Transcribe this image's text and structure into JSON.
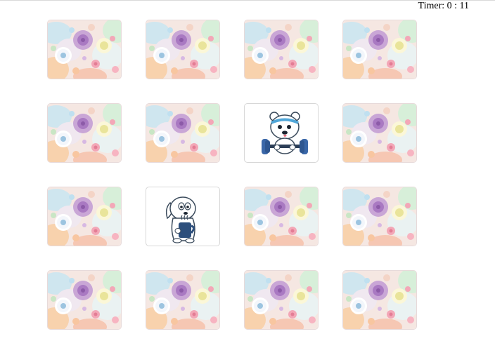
{
  "timer": {
    "label": "Timer:",
    "minutes": "0",
    "separator": ":",
    "seconds": "11"
  },
  "board": {
    "rows": 4,
    "columns": 4,
    "cards": [
      {
        "state": "face-down",
        "back": "floral-pattern"
      },
      {
        "state": "face-down",
        "back": "floral-pattern"
      },
      {
        "state": "face-down",
        "back": "floral-pattern"
      },
      {
        "state": "face-down",
        "back": "floral-pattern"
      },
      {
        "state": "face-down",
        "back": "floral-pattern"
      },
      {
        "state": "face-down",
        "back": "floral-pattern"
      },
      {
        "state": "face-up",
        "image": "polar-bear-with-dumbbell"
      },
      {
        "state": "face-down",
        "back": "floral-pattern"
      },
      {
        "state": "face-down",
        "back": "floral-pattern"
      },
      {
        "state": "face-up",
        "image": "white-dog-with-cup"
      },
      {
        "state": "face-down",
        "back": "floral-pattern"
      },
      {
        "state": "face-down",
        "back": "floral-pattern"
      },
      {
        "state": "face-down",
        "back": "floral-pattern"
      },
      {
        "state": "face-down",
        "back": "floral-pattern"
      },
      {
        "state": "face-down",
        "back": "floral-pattern"
      },
      {
        "state": "face-down",
        "back": "floral-pattern"
      }
    ]
  }
}
